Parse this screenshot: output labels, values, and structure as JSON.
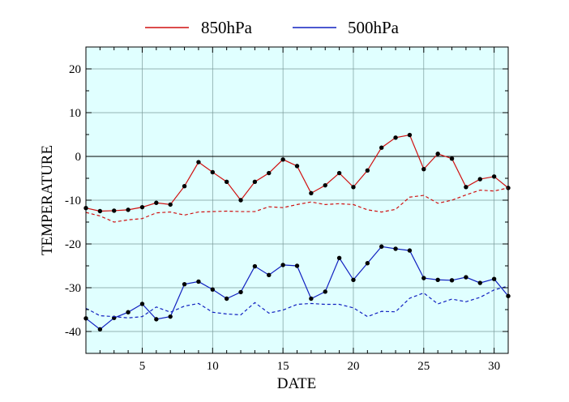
{
  "chart_data": {
    "type": "line",
    "title": "",
    "xlabel": "DATE",
    "ylabel": "TEMPERATURE",
    "xlim": [
      1,
      31
    ],
    "ylim": [
      -45,
      25
    ],
    "x_ticks": [
      5,
      10,
      15,
      20,
      25,
      30
    ],
    "y_ticks": [
      20,
      10,
      0,
      -10,
      -20,
      -30,
      -40
    ],
    "grid": true,
    "zero_line": true,
    "background_color": "#e0ffff",
    "legend_position": "top",
    "x": [
      1,
      2,
      3,
      4,
      5,
      6,
      7,
      8,
      9,
      10,
      11,
      12,
      13,
      14,
      15,
      16,
      17,
      18,
      19,
      20,
      21,
      22,
      23,
      24,
      25,
      26,
      27,
      28,
      29,
      30,
      31
    ],
    "series": [
      {
        "name": "850hPa",
        "color": "#d01010",
        "style": "solid",
        "markers": true,
        "values": [
          -11.8,
          -12.5,
          -12.4,
          -12.2,
          -11.6,
          -10.6,
          -11.0,
          -6.8,
          -1.3,
          -3.6,
          -5.8,
          -10.0,
          -5.8,
          -3.8,
          -0.7,
          -2.2,
          -8.4,
          -6.6,
          -3.8,
          -7.0,
          -3.2,
          2.0,
          4.3,
          4.9,
          -2.9,
          0.6,
          -0.5,
          -7.0,
          -5.2,
          -4.6,
          -7.2
        ]
      },
      {
        "name": "850hPa",
        "color": "#d01010",
        "style": "dashed",
        "markers": false,
        "values": [
          -12.8,
          -13.6,
          -15.0,
          -14.5,
          -14.2,
          -12.9,
          -12.7,
          -13.4,
          -12.7,
          -12.6,
          -12.5,
          -12.6,
          -12.6,
          -11.5,
          -11.7,
          -11.0,
          -10.4,
          -11.0,
          -10.8,
          -11.0,
          -12.2,
          -12.7,
          -12.1,
          -9.3,
          -8.9,
          -10.7,
          -10.0,
          -8.8,
          -7.7,
          -7.9,
          -7.2
        ]
      },
      {
        "name": "500hPa",
        "color": "#1020c0",
        "style": "solid",
        "markers": true,
        "values": [
          -37.0,
          -39.5,
          -36.9,
          -35.6,
          -33.7,
          -37.2,
          -36.6,
          -29.2,
          -28.6,
          -30.4,
          -32.5,
          -31.0,
          -25.1,
          -27.1,
          -24.8,
          -25.0,
          -32.5,
          -30.9,
          -23.2,
          -28.2,
          -24.4,
          -20.6,
          -21.1,
          -21.5,
          -27.8,
          -28.2,
          -28.3,
          -27.6,
          -28.9,
          -28.0,
          -31.9
        ]
      },
      {
        "name": "500hPa",
        "color": "#1020c0",
        "style": "dashed",
        "markers": false,
        "values": [
          -34.7,
          -36.4,
          -36.6,
          -36.9,
          -36.6,
          -34.4,
          -35.6,
          -34.2,
          -33.6,
          -35.6,
          -36.0,
          -36.2,
          -33.4,
          -35.8,
          -35.1,
          -33.8,
          -33.6,
          -33.8,
          -33.8,
          -34.6,
          -36.6,
          -35.4,
          -35.5,
          -32.4,
          -31.2,
          -33.7,
          -32.6,
          -33.2,
          -32.2,
          -30.5,
          -29.6
        ]
      }
    ],
    "legend": [
      {
        "label": "850hPa",
        "color": "#d01010"
      },
      {
        "label": "500hPa",
        "color": "#1020c0"
      }
    ]
  }
}
